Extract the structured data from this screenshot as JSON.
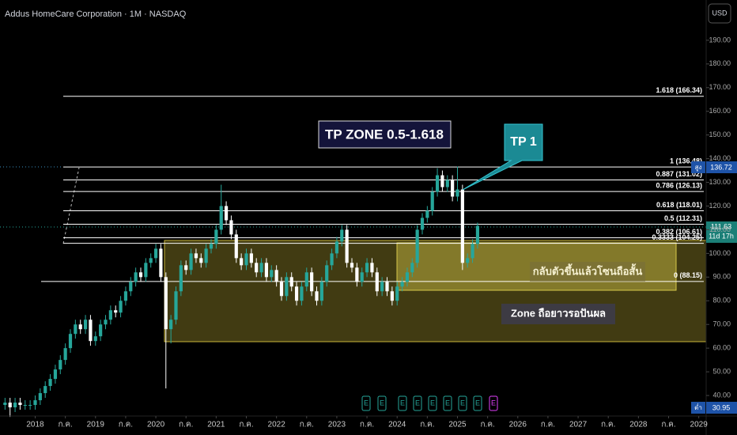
{
  "chart_data": {
    "type": "candlestick",
    "title": "Addus HomeCare Corporation · 1M · NASDAQ",
    "currency": "USD",
    "up_color": "#26a69a",
    "down_color": "#ffffff",
    "x": [
      "2017-07",
      "2017-08",
      "2017-09",
      "2017-10",
      "2017-11",
      "2017-12",
      "2018-01",
      "2018-02",
      "2018-03",
      "2018-04",
      "2018-05",
      "2018-06",
      "2018-07",
      "2018-08",
      "2018-09",
      "2018-10",
      "2018-11",
      "2018-12",
      "2019-01",
      "2019-02",
      "2019-03",
      "2019-04",
      "2019-05",
      "2019-06",
      "2019-07",
      "2019-08",
      "2019-09",
      "2019-10",
      "2019-11",
      "2019-12",
      "2020-01",
      "2020-02",
      "2020-03",
      "2020-04",
      "2020-05",
      "2020-06",
      "2020-07",
      "2020-08",
      "2020-09",
      "2020-10",
      "2020-11",
      "2020-12",
      "2021-01",
      "2021-02",
      "2021-03",
      "2021-04",
      "2021-05",
      "2021-06",
      "2021-07",
      "2021-08",
      "2021-09",
      "2021-10",
      "2021-11",
      "2021-12",
      "2022-01",
      "2022-02",
      "2022-03",
      "2022-04",
      "2022-05",
      "2022-06",
      "2022-07",
      "2022-08",
      "2022-09",
      "2022-10",
      "2022-11",
      "2022-12",
      "2023-01",
      "2023-02",
      "2023-03",
      "2023-04",
      "2023-05",
      "2023-06",
      "2023-07",
      "2023-08",
      "2023-09",
      "2023-10",
      "2023-11",
      "2023-12",
      "2024-01",
      "2024-02",
      "2024-03",
      "2024-04",
      "2024-05",
      "2024-06",
      "2024-07",
      "2024-08",
      "2024-09",
      "2024-10",
      "2024-11",
      "2024-12",
      "2025-01",
      "2025-02",
      "2025-03",
      "2025-04",
      "2025-05"
    ],
    "open": [
      36,
      37,
      35,
      37,
      36,
      36,
      36,
      38,
      41,
      44,
      47,
      51,
      55,
      60,
      66,
      70,
      68,
      72,
      63,
      65,
      70,
      72,
      76,
      75,
      80,
      84,
      88,
      92,
      90,
      96,
      98,
      102,
      90,
      68,
      72,
      84,
      95,
      93,
      100,
      98,
      96,
      102,
      104,
      110,
      120,
      114,
      108,
      98,
      95,
      100,
      96,
      92,
      96,
      90,
      93,
      88,
      82,
      90,
      86,
      80,
      86,
      92,
      84,
      80,
      88,
      95,
      100,
      105,
      110,
      96,
      94,
      88,
      92,
      96,
      92,
      84,
      88,
      84,
      80,
      86,
      88,
      92,
      96,
      110,
      115,
      118,
      126,
      133,
      128,
      131,
      124,
      127,
      96,
      98,
      104
    ],
    "high": [
      39,
      39,
      39,
      39,
      38,
      38,
      40,
      43,
      46,
      49,
      53,
      57,
      62,
      68,
      72,
      72,
      74,
      74,
      67,
      72,
      74,
      78,
      78,
      82,
      86,
      90,
      94,
      94,
      98,
      100,
      104,
      104,
      92,
      74,
      86,
      97,
      97,
      102,
      102,
      100,
      104,
      106,
      112,
      129,
      122,
      116,
      110,
      100,
      102,
      102,
      98,
      98,
      98,
      95,
      95,
      90,
      92,
      92,
      88,
      88,
      94,
      94,
      86,
      90,
      97,
      102,
      107,
      112,
      112,
      98,
      96,
      94,
      98,
      98,
      94,
      90,
      90,
      86,
      88,
      90,
      94,
      98,
      112,
      117,
      120,
      128,
      136,
      135,
      133,
      133,
      136.72,
      129,
      100,
      106,
      113
    ],
    "low": [
      34,
      30.95,
      33,
      34,
      34,
      34,
      34,
      36,
      39,
      42,
      45,
      49,
      53,
      58,
      64,
      66,
      66,
      61,
      61,
      63,
      68,
      70,
      73,
      73,
      78,
      82,
      86,
      88,
      88,
      94,
      96,
      88,
      43,
      62,
      70,
      82,
      91,
      91,
      96,
      94,
      94,
      100,
      102,
      108,
      112,
      106,
      96,
      93,
      93,
      94,
      90,
      90,
      88,
      88,
      86,
      80,
      80,
      84,
      78,
      78,
      84,
      82,
      78,
      78,
      86,
      93,
      98,
      103,
      94,
      92,
      86,
      86,
      90,
      90,
      82,
      82,
      82,
      78,
      78,
      84,
      86,
      90,
      94,
      108,
      113,
      116,
      124,
      126,
      126,
      122,
      122,
      93,
      94,
      96,
      102
    ],
    "close": [
      37,
      35,
      37,
      36,
      36,
      36,
      38,
      41,
      44,
      47,
      51,
      55,
      60,
      66,
      70,
      68,
      72,
      63,
      65,
      70,
      72,
      76,
      75,
      80,
      84,
      88,
      92,
      90,
      96,
      98,
      102,
      90,
      68,
      72,
      84,
      95,
      93,
      100,
      98,
      96,
      102,
      104,
      110,
      120,
      114,
      108,
      98,
      95,
      100,
      96,
      92,
      96,
      90,
      93,
      88,
      82,
      90,
      86,
      80,
      86,
      92,
      84,
      80,
      88,
      95,
      100,
      105,
      110,
      96,
      94,
      88,
      92,
      96,
      92,
      84,
      88,
      84,
      80,
      86,
      88,
      92,
      96,
      110,
      115,
      118,
      126,
      133,
      128,
      131,
      124,
      127,
      96,
      98,
      104,
      111.63
    ],
    "xlim": [
      "2017-06",
      "2029-02"
    ],
    "xticks": [
      {
        "value": "2018-01",
        "label": "2018"
      },
      {
        "value": "2018-07",
        "label": "ก.ค."
      },
      {
        "value": "2019-01",
        "label": "2019"
      },
      {
        "value": "2019-07",
        "label": "ก.ค."
      },
      {
        "value": "2020-01",
        "label": "2020"
      },
      {
        "value": "2020-07",
        "label": "ก.ค."
      },
      {
        "value": "2021-01",
        "label": "2021"
      },
      {
        "value": "2021-07",
        "label": "ก.ค."
      },
      {
        "value": "2022-01",
        "label": "2022"
      },
      {
        "value": "2022-07",
        "label": "ก.ค."
      },
      {
        "value": "2023-01",
        "label": "2023"
      },
      {
        "value": "2023-07",
        "label": "ก.ค."
      },
      {
        "value": "2024-01",
        "label": "2024"
      },
      {
        "value": "2024-07",
        "label": "ก.ค."
      },
      {
        "value": "2025-01",
        "label": "2025"
      },
      {
        "value": "2025-07",
        "label": "ก.ค."
      },
      {
        "value": "2026-01",
        "label": "2026"
      },
      {
        "value": "2026-07",
        "label": "ก.ค."
      },
      {
        "value": "2027-01",
        "label": "2027"
      },
      {
        "value": "2027-07",
        "label": "ก.ค."
      },
      {
        "value": "2028-01",
        "label": "2028"
      },
      {
        "value": "2028-07",
        "label": "ก.ค."
      },
      {
        "value": "2029-01",
        "label": "2029"
      }
    ],
    "ylim": [
      32,
      207
    ],
    "yticks": [
      {
        "value": 40,
        "label": "40.00"
      },
      {
        "value": 50,
        "label": "50.00"
      },
      {
        "value": 60,
        "label": "60.00"
      },
      {
        "value": 70,
        "label": "70.00"
      },
      {
        "value": 80,
        "label": "80.00"
      },
      {
        "value": 90,
        "label": "90.00"
      },
      {
        "value": 100,
        "label": "100.00"
      },
      {
        "value": 110,
        "label": "110.00"
      },
      {
        "value": 120,
        "label": "120.00"
      },
      {
        "value": 130,
        "label": "130.00"
      },
      {
        "value": 140,
        "label": "140.00"
      },
      {
        "value": 150,
        "label": "150.00"
      },
      {
        "value": 160,
        "label": "160.00"
      },
      {
        "value": 170,
        "label": "170.00"
      },
      {
        "value": 180,
        "label": "180.00"
      },
      {
        "value": 190,
        "label": "190.00"
      }
    ],
    "fib_levels": [
      {
        "value": 166.34,
        "label": "1.618 (166.34)"
      },
      {
        "value": 136.48,
        "label": "1 (136.48)"
      },
      {
        "value": 131.02,
        "label": "0.887 (131.02)"
      },
      {
        "value": 126.13,
        "label": "0.786 (126.13)"
      },
      {
        "value": 118.01,
        "label": "0.618 (118.01)"
      },
      {
        "value": 112.31,
        "label": "0.5 (112.31)"
      },
      {
        "value": 106.61,
        "label": "0.382 (106.61)"
      },
      {
        "value": 104.25,
        "label": "0.3333 (104.25)"
      },
      {
        "value": 88.15,
        "label": "0 (88.15)"
      }
    ],
    "high_badge_label": "สูง",
    "low_badge_label": "ต่ำ",
    "countdown": "11d 17h",
    "annotations": [
      "TP ZONE 0.5-1.618",
      "TP 1",
      "กลับตัวขึ้นแล้วโซนถือสั้น",
      "Zone ถือยาวรอปันผล"
    ],
    "earnings": [
      "E",
      "E",
      "E",
      "E",
      "E",
      "E",
      "E",
      "E",
      "E"
    ]
  }
}
